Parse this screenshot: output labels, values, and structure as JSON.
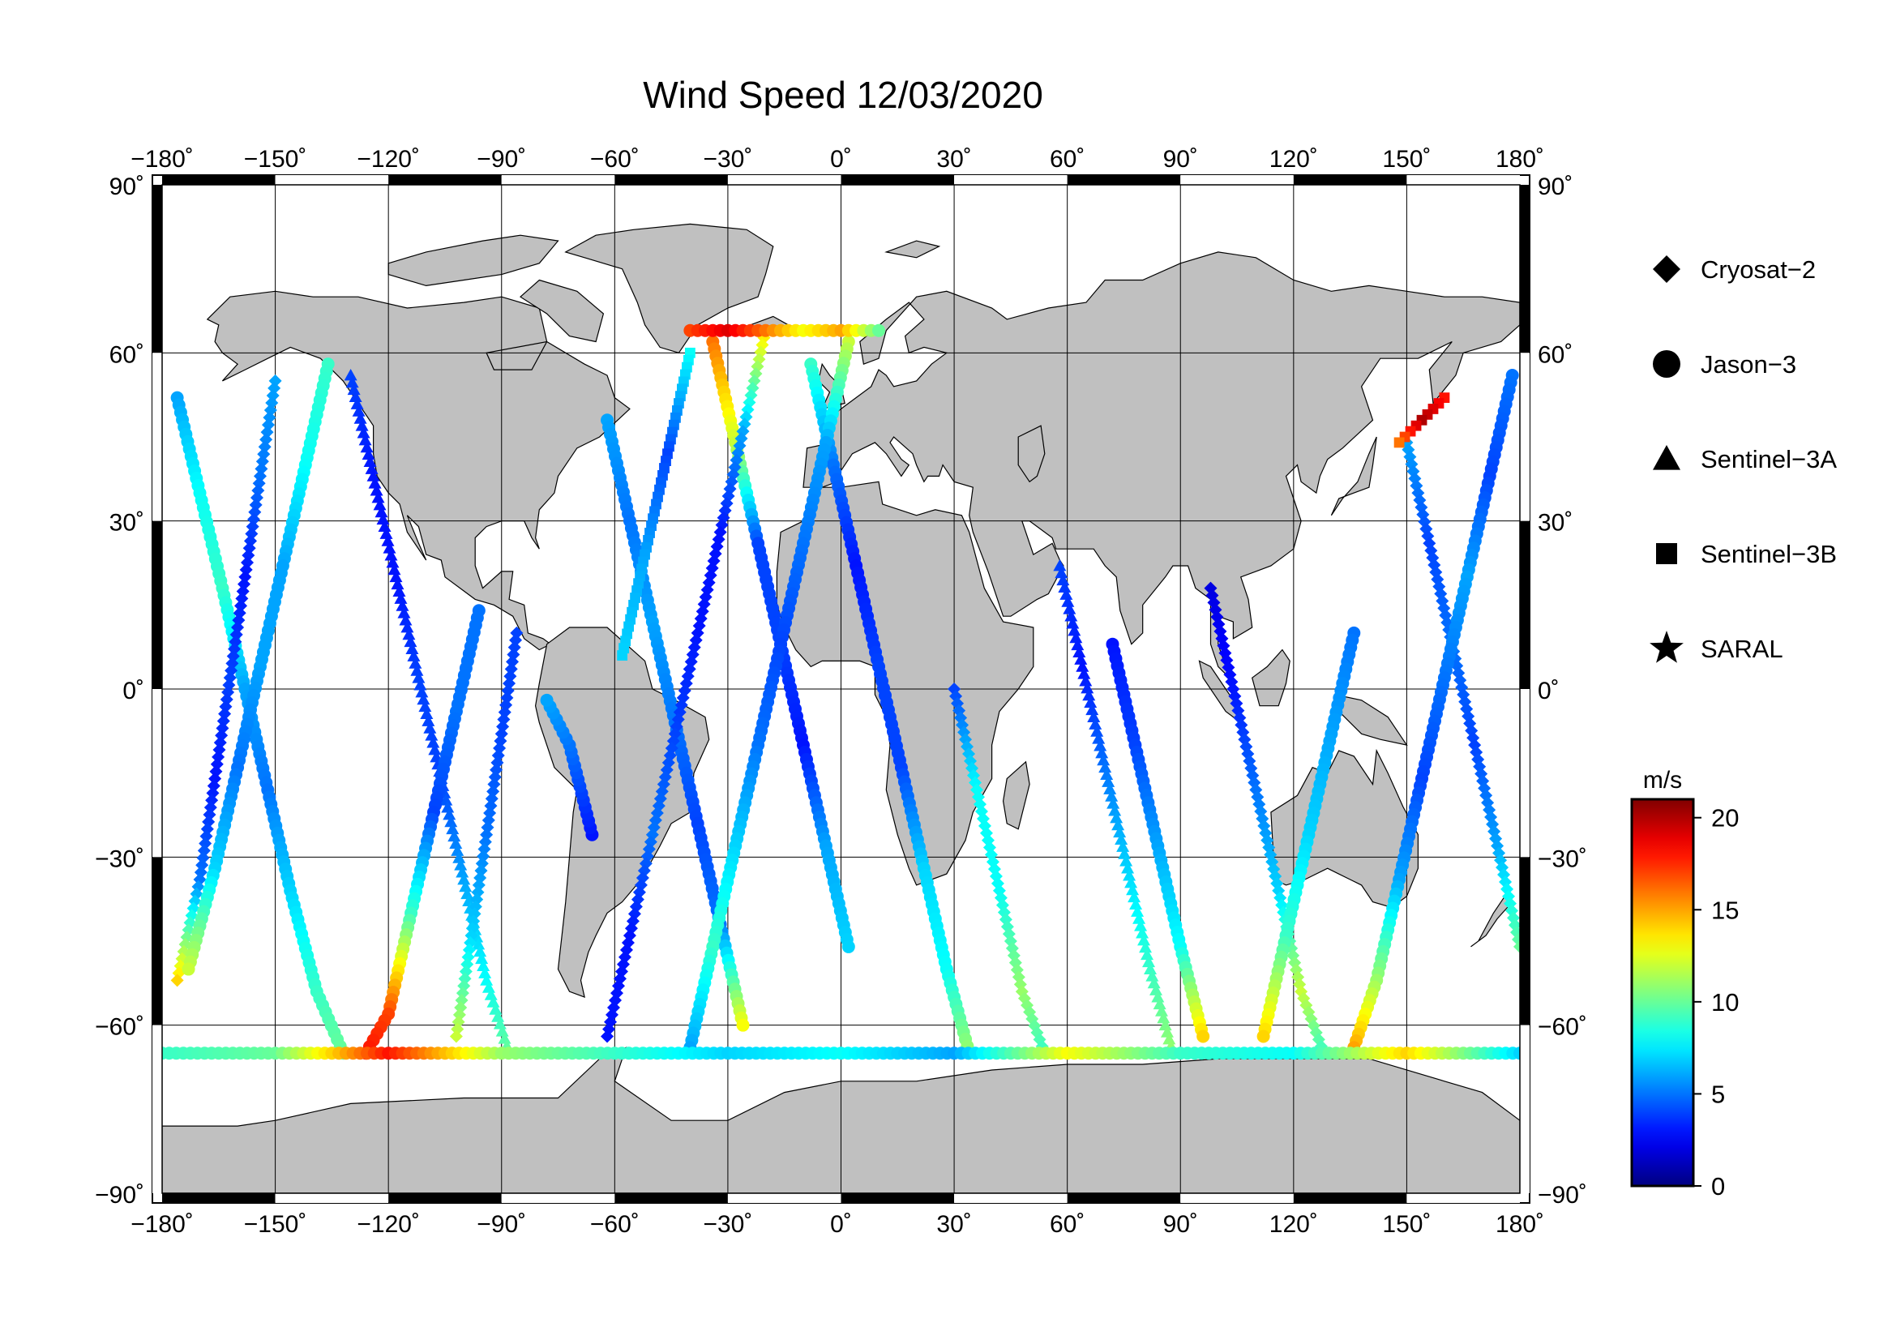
{
  "title": "Wind Speed 12/03/2020",
  "map": {
    "projection": "equirectangular",
    "lon_range": [
      -180,
      180
    ],
    "lat_range": [
      -90,
      90
    ],
    "grid_step_lon": 30,
    "grid_step_lat": 30,
    "ocean_color": "#ffffff",
    "land_color": "#c0c0c0",
    "lon_ticks": [
      "−180˚",
      "−150˚",
      "−120˚",
      "−90˚",
      "−60˚",
      "−30˚",
      "0˚",
      "30˚",
      "60˚",
      "90˚",
      "120˚",
      "150˚",
      "180˚"
    ],
    "lat_ticks_left": [
      "90˚",
      "60˚",
      "30˚",
      "0˚",
      "−30˚",
      "−60˚",
      "−90˚"
    ],
    "lat_ticks_right": [
      "90˚",
      "60˚",
      "30˚",
      "0˚",
      "−30˚",
      "−60˚",
      "−90˚"
    ]
  },
  "legend": {
    "items": [
      {
        "label": "Cryosat−2",
        "icon": "diamond-icon"
      },
      {
        "label": "Jason−3",
        "icon": "circle-icon"
      },
      {
        "label": "Sentinel−3A",
        "icon": "triangle-icon"
      },
      {
        "label": "Sentinel−3B",
        "icon": "square-icon"
      },
      {
        "label": "SARAL",
        "icon": "star-icon"
      }
    ]
  },
  "colorbar": {
    "unit": "m/s",
    "min": 0,
    "max": 21,
    "ticks": [
      0,
      5,
      10,
      15,
      20
    ],
    "colormap": "jet"
  },
  "chart_data": {
    "type": "scatter",
    "title": "Wind Speed 12/03/2020",
    "xlabel": "",
    "ylabel": "",
    "xlim": [
      -180,
      180
    ],
    "ylim": [
      -90,
      90
    ],
    "value_unit": "m/s",
    "tracks": [
      {
        "satellite": "Jason−3",
        "points": [
          [
            -176,
            52,
            6
          ],
          [
            -170,
            35,
            8
          ],
          [
            -164,
            18,
            9
          ],
          [
            -158,
            0,
            6
          ],
          [
            -152,
            -18,
            5
          ],
          [
            -146,
            -36,
            7
          ],
          [
            -139,
            -54,
            9
          ],
          [
            -132,
            -65,
            10
          ]
        ]
      },
      {
        "satellite": "Cryosat−2",
        "points": [
          [
            -150,
            55,
            6
          ],
          [
            -154,
            38,
            5
          ],
          [
            -158,
            20,
            3
          ],
          [
            -162,
            2,
            4
          ],
          [
            -166,
            -16,
            3
          ],
          [
            -170,
            -34,
            5
          ],
          [
            -176,
            -52,
            14
          ]
        ]
      },
      {
        "satellite": "Jason−3",
        "points": [
          [
            -136,
            58,
            9
          ],
          [
            -142,
            40,
            8
          ],
          [
            -148,
            22,
            6
          ],
          [
            -154,
            4,
            6
          ],
          [
            -160,
            -14,
            5
          ],
          [
            -166,
            -32,
            7
          ],
          [
            -173,
            -50,
            12
          ]
        ]
      },
      {
        "satellite": "Sentinel−3A",
        "points": [
          [
            -130,
            56,
            4
          ],
          [
            -124,
            38,
            3
          ],
          [
            -118,
            20,
            3
          ],
          [
            -112,
            2,
            4
          ],
          [
            -106,
            -16,
            4
          ],
          [
            -100,
            -34,
            6
          ],
          [
            -94,
            -52,
            8
          ],
          [
            -88,
            -65,
            10
          ]
        ]
      },
      {
        "satellite": "Jason−3",
        "points": [
          [
            -96,
            14,
            5
          ],
          [
            -102,
            -4,
            5
          ],
          [
            -108,
            -22,
            4
          ],
          [
            -114,
            -40,
            9
          ],
          [
            -120,
            -58,
            17
          ],
          [
            -126,
            -65,
            18
          ]
        ]
      },
      {
        "satellite": "Cryosat−2",
        "points": [
          [
            -86,
            10,
            4
          ],
          [
            -90,
            -8,
            4
          ],
          [
            -94,
            -26,
            5
          ],
          [
            -98,
            -44,
            7
          ],
          [
            -102,
            -62,
            12
          ]
        ]
      },
      {
        "satellite": "Jason−3",
        "points": [
          [
            -66,
            -26,
            3
          ],
          [
            -72,
            -10,
            5
          ],
          [
            -78,
            -2,
            6
          ]
        ]
      },
      {
        "satellite": "Jason−3",
        "points": [
          [
            -62,
            48,
            6
          ],
          [
            -56,
            30,
            5
          ],
          [
            -50,
            12,
            6
          ],
          [
            -44,
            -6,
            5
          ],
          [
            -38,
            -24,
            4
          ],
          [
            -32,
            -42,
            5
          ],
          [
            -26,
            -60,
            13
          ]
        ]
      },
      {
        "satellite": "Sentinel−3B",
        "points": [
          [
            -40,
            60,
            8
          ],
          [
            -46,
            42,
            4
          ],
          [
            -52,
            24,
            6
          ],
          [
            -58,
            6,
            7
          ]
        ]
      },
      {
        "satellite": "Jason−3",
        "points": [
          [
            -34,
            62,
            16
          ],
          [
            -28,
            44,
            12
          ],
          [
            -22,
            26,
            4
          ],
          [
            -16,
            8,
            4
          ],
          [
            -10,
            -10,
            3
          ],
          [
            -4,
            -28,
            6
          ],
          [
            2,
            -46,
            7
          ]
        ]
      },
      {
        "satellite": "Cryosat−2",
        "points": [
          [
            -20,
            64,
            14
          ],
          [
            -26,
            46,
            6
          ],
          [
            -32,
            28,
            3
          ],
          [
            -38,
            10,
            3
          ],
          [
            -44,
            -8,
            4
          ],
          [
            -50,
            -26,
            5
          ],
          [
            -56,
            -44,
            3
          ],
          [
            -62,
            -62,
            3
          ]
        ]
      },
      {
        "satellite": "Jason−3",
        "points": [
          [
            -8,
            58,
            9
          ],
          [
            -2,
            40,
            5
          ],
          [
            4,
            22,
            3
          ],
          [
            10,
            4,
            4
          ],
          [
            16,
            -14,
            4
          ],
          [
            22,
            -32,
            7
          ],
          [
            28,
            -50,
            8
          ],
          [
            34,
            -65,
            11
          ]
        ]
      },
      {
        "satellite": "Jason−3",
        "points": [
          [
            2,
            62,
            12
          ],
          [
            -4,
            44,
            6
          ],
          [
            -10,
            26,
            5
          ],
          [
            -16,
            8,
            4
          ],
          [
            -22,
            -10,
            5
          ],
          [
            -28,
            -28,
            7
          ],
          [
            -34,
            -46,
            9
          ],
          [
            -40,
            -64,
            6
          ]
        ]
      },
      {
        "satellite": "Cryosat−2",
        "points": [
          [
            30,
            0,
            4
          ],
          [
            36,
            -18,
            8
          ],
          [
            42,
            -36,
            8
          ],
          [
            48,
            -54,
            11
          ],
          [
            54,
            -65,
            9
          ]
        ]
      },
      {
        "satellite": "Sentinel−3A",
        "points": [
          [
            58,
            22,
            4
          ],
          [
            64,
            4,
            3
          ],
          [
            70,
            -14,
            5
          ],
          [
            76,
            -32,
            7
          ],
          [
            82,
            -50,
            9
          ],
          [
            88,
            -65,
            11
          ]
        ]
      },
      {
        "satellite": "Jason−3",
        "points": [
          [
            72,
            8,
            3
          ],
          [
            78,
            -10,
            4
          ],
          [
            84,
            -28,
            6
          ],
          [
            90,
            -46,
            8
          ],
          [
            96,
            -62,
            14
          ]
        ]
      },
      {
        "satellite": "Cryosat−2",
        "points": [
          [
            98,
            18,
            2
          ],
          [
            104,
            0,
            3
          ],
          [
            110,
            -18,
            5
          ],
          [
            116,
            -36,
            7
          ],
          [
            122,
            -54,
            12
          ],
          [
            128,
            -65,
            9
          ]
        ]
      },
      {
        "satellite": "Jason−3",
        "points": [
          [
            136,
            10,
            5
          ],
          [
            130,
            -8,
            6
          ],
          [
            124,
            -26,
            7
          ],
          [
            118,
            -44,
            9
          ],
          [
            112,
            -62,
            14
          ]
        ]
      },
      {
        "satellite": "Cryosat−2",
        "points": [
          [
            150,
            44,
            6
          ],
          [
            156,
            26,
            4
          ],
          [
            162,
            8,
            5
          ],
          [
            168,
            -10,
            4
          ],
          [
            174,
            -28,
            6
          ],
          [
            180,
            -46,
            10
          ]
        ]
      },
      {
        "satellite": "Jason−3",
        "points": [
          [
            178,
            56,
            5
          ],
          [
            172,
            38,
            4
          ],
          [
            166,
            20,
            6
          ],
          [
            160,
            2,
            5
          ],
          [
            154,
            -16,
            4
          ],
          [
            148,
            -34,
            6
          ],
          [
            142,
            -52,
            11
          ],
          [
            136,
            -64,
            15
          ]
        ]
      },
      {
        "satellite": "Sentinel−3B",
        "points": [
          [
            160,
            52,
            18
          ],
          [
            154,
            48,
            20
          ],
          [
            148,
            44,
            16
          ]
        ]
      },
      {
        "satellite": "Jason−3",
        "points": [
          [
            -180,
            -65,
            9
          ],
          [
            -150,
            -65,
            10
          ],
          [
            -120,
            -65,
            18
          ],
          [
            -90,
            -65,
            11
          ],
          [
            -60,
            -65,
            9
          ],
          [
            -30,
            -65,
            7
          ],
          [
            0,
            -65,
            8
          ],
          [
            30,
            -65,
            6
          ],
          [
            60,
            -65,
            13
          ],
          [
            90,
            -65,
            9
          ],
          [
            120,
            -65,
            8
          ],
          [
            150,
            -65,
            14
          ],
          [
            180,
            -65,
            7
          ]
        ]
      },
      {
        "satellite": "Jason−3",
        "points": [
          [
            -40,
            64,
            17
          ],
          [
            -30,
            64,
            19
          ],
          [
            -20,
            64,
            16
          ],
          [
            -10,
            64,
            13
          ],
          [
            0,
            64,
            15
          ],
          [
            10,
            64,
            10
          ]
        ]
      }
    ]
  }
}
